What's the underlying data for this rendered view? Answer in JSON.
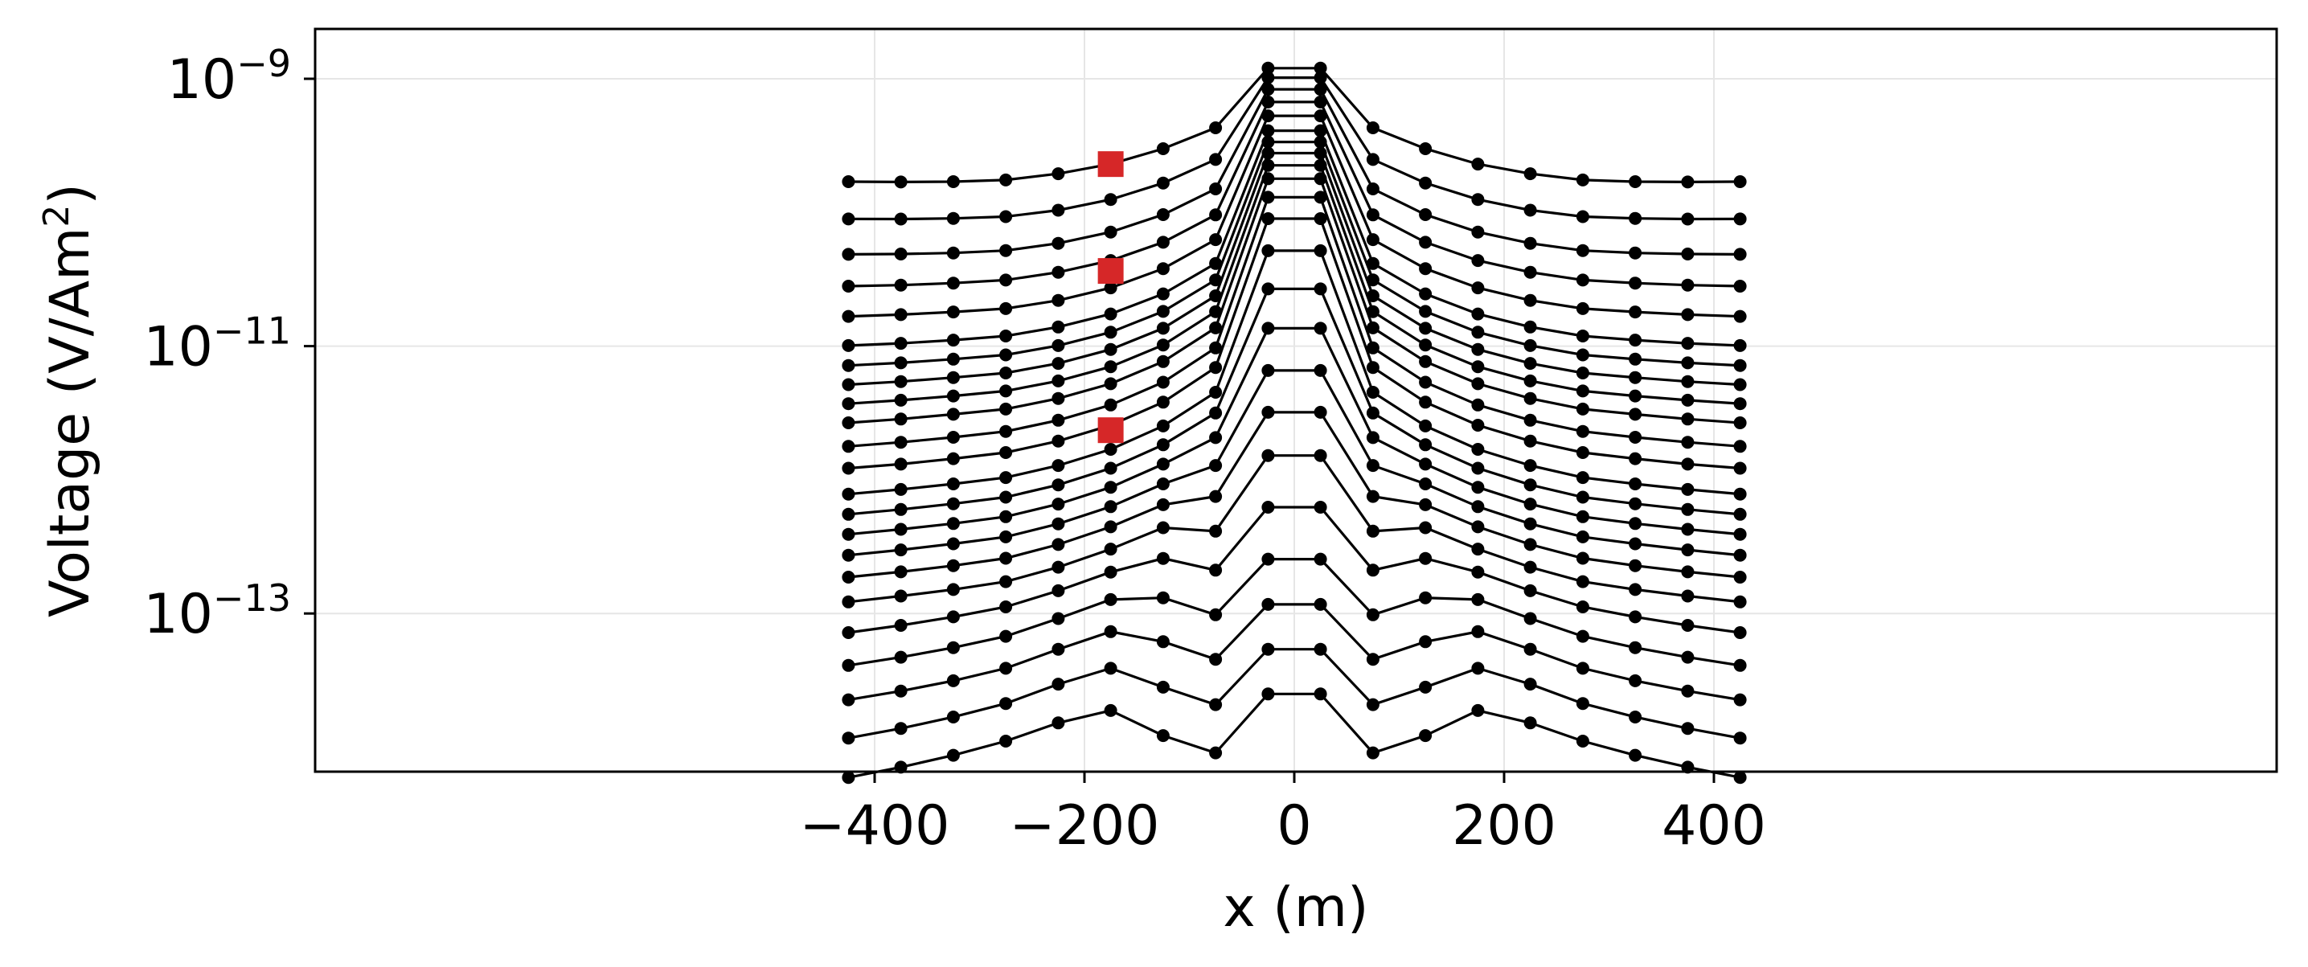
{
  "chart_data": {
    "type": "line",
    "xlabel": "x (m)",
    "ylabel": "Voltage (V/Am²)",
    "ylabel_parts": {
      "pre": "Voltage (V/Am",
      "sup": "2",
      "post": ")"
    },
    "xscale": "linear",
    "yscale": "log",
    "xlim": [
      -465,
      465
    ],
    "ylim": [
      4e-15,
      2.2e-09
    ],
    "x_ticks": [
      -400,
      -200,
      0,
      200,
      400
    ],
    "x_tick_labels": [
      "−400",
      "−200",
      "0",
      "200",
      "400"
    ],
    "y_ticks": [
      {
        "value": 1e-09,
        "base": "10",
        "exp": "−9"
      },
      {
        "value": 1e-11,
        "base": "10",
        "exp": "−11"
      },
      {
        "value": 1e-13,
        "base": "10",
        "exp": "−13"
      }
    ],
    "grid": true,
    "legend": "none",
    "line_color": "#000000",
    "highlight_color": "#d62728",
    "x": [
      -425,
      -375,
      -325,
      -275,
      -225,
      -175,
      -125,
      -75,
      -25,
      25,
      75,
      125,
      175,
      225,
      275,
      325,
      375,
      425
    ],
    "series": [
      {
        "values": [
          1.7e-10,
          1.69e-10,
          1.7e-10,
          1.75e-10,
          1.95e-10,
          2.3e-10,
          3e-10,
          4.3e-10,
          1.2e-09,
          1.2e-09,
          4.3e-10,
          3e-10,
          2.3e-10,
          1.95e-10,
          1.75e-10,
          1.7e-10,
          1.69e-10,
          1.7e-10
        ]
      },
      {
        "values": [
          8.94e-11,
          8.93e-11,
          9.02e-11,
          9.3e-11,
          1.04e-10,
          1.25e-10,
          1.66e-10,
          2.49e-10,
          1.02e-09,
          1.02e-09,
          2.49e-10,
          1.66e-10,
          1.25e-10,
          1.04e-10,
          9.3e-11,
          9.02e-11,
          8.93e-11,
          8.94e-11
        ]
      },
      {
        "values": [
          4.86e-11,
          4.89e-11,
          4.98e-11,
          5.19e-11,
          5.88e-11,
          7.13e-11,
          9.63e-11,
          1.5e-10,
          8.34e-10,
          8.34e-10,
          1.5e-10,
          9.63e-11,
          7.13e-11,
          5.88e-11,
          5.19e-11,
          4.98e-11,
          4.89e-11,
          4.86e-11
        ]
      },
      {
        "values": [
          2.81e-11,
          2.86e-11,
          2.96e-11,
          3.12e-11,
          3.57e-11,
          4.37e-11,
          5.98e-11,
          9.59e-11,
          6.7e-10,
          6.7e-10,
          9.59e-11,
          5.98e-11,
          4.37e-11,
          3.57e-11,
          3.12e-11,
          2.96e-11,
          2.86e-11,
          2.81e-11
        ]
      },
      {
        "values": [
          1.67e-11,
          1.72e-11,
          1.8e-11,
          1.91e-11,
          2.2e-11,
          2.73e-11,
          3.8e-11,
          6.26e-11,
          5.28e-10,
          5.28e-10,
          6.26e-11,
          3.8e-11,
          2.73e-11,
          2.2e-11,
          1.91e-11,
          1.8e-11,
          1.72e-11,
          1.67e-11
        ]
      },
      {
        "values": [
          1.01e-11,
          1.05e-11,
          1.11e-11,
          1.19e-11,
          1.39e-11,
          1.74e-11,
          2.46e-11,
          4.15e-11,
          4.09e-10,
          4.09e-10,
          4.15e-11,
          2.46e-11,
          1.74e-11,
          1.39e-11,
          1.19e-11,
          1.11e-11,
          1.05e-11,
          1.01e-11
        ]
      },
      {
        "values": [
          7.16e-12,
          7.5e-12,
          7.99e-12,
          8.6e-12,
          1.01e-11,
          1.27e-11,
          1.82e-11,
          3.13e-11,
          3.37e-10,
          3.37e-10,
          3.13e-11,
          1.82e-11,
          1.27e-11,
          1.01e-11,
          8.6e-12,
          7.99e-12,
          7.5e-12,
          7.16e-12
        ]
      },
      {
        "values": [
          5.15e-12,
          5.43e-12,
          5.82e-12,
          6.3e-12,
          7.43e-12,
          9.45e-12,
          1.36e-11,
          2.38e-11,
          2.78e-10,
          2.78e-10,
          2.38e-11,
          1.36e-11,
          9.45e-12,
          7.43e-12,
          6.3e-12,
          5.82e-12,
          5.43e-12,
          5.15e-12
        ]
      },
      {
        "values": [
          3.71e-12,
          3.94e-12,
          4.24e-12,
          4.62e-12,
          5.49e-12,
          7.02e-12,
          1.02e-11,
          1.81e-11,
          2.25e-10,
          2.25e-10,
          1.81e-11,
          1.02e-11,
          7.02e-12,
          5.49e-12,
          4.62e-12,
          4.24e-12,
          3.94e-12,
          3.71e-12
        ]
      },
      {
        "values": [
          2.67e-12,
          2.85e-12,
          3.09e-12,
          3.38e-12,
          4.06e-12,
          5.23e-12,
          7.67e-12,
          1.37e-11,
          1.79e-10,
          1.79e-10,
          1.37e-11,
          7.67e-12,
          5.23e-12,
          4.06e-12,
          3.38e-12,
          3.09e-12,
          2.85e-12,
          2.67e-12
        ]
      },
      {
        "values": [
          1.78e-12,
          1.91e-12,
          2.08e-12,
          2.3e-12,
          2.79e-12,
          3.63e-12,
          5.37e-12,
          9.7e-12,
          1.3e-10,
          1.3e-10,
          9.7e-12,
          5.37e-12,
          3.63e-12,
          2.79e-12,
          2.3e-12,
          2.08e-12,
          1.91e-12,
          1.78e-12
        ]
      },
      {
        "values": [
          1.22e-12,
          1.31e-12,
          1.44e-12,
          1.6e-12,
          1.95e-12,
          2.56e-12,
          3.81e-12,
          6.92e-12,
          8.99e-11,
          8.99e-11,
          6.92e-12,
          3.81e-12,
          2.56e-12,
          1.95e-12,
          1.6e-12,
          1.44e-12,
          1.31e-12,
          1.22e-12
        ]
      },
      {
        "values": [
          7.82e-13,
          8.47e-13,
          9.32e-13,
          1.04e-12,
          1.28e-12,
          1.69e-12,
          2.53e-12,
          4.52e-12,
          5.17e-11,
          5.17e-11,
          4.52e-12,
          2.53e-12,
          1.69e-12,
          1.28e-12,
          1.04e-12,
          9.32e-13,
          8.47e-13,
          7.82e-13
        ]
      },
      {
        "values": [
          5.52e-13,
          6e-13,
          6.62e-13,
          7.42e-13,
          9.16e-13,
          1.22e-12,
          1.83e-12,
          3.16e-12,
          2.68e-11,
          2.68e-11,
          3.16e-12,
          1.83e-12,
          1.22e-12,
          9.16e-13,
          7.42e-13,
          6.62e-13,
          6e-13,
          5.52e-13
        ]
      },
      {
        "values": [
          3.91e-13,
          4.26e-13,
          4.71e-13,
          5.3e-13,
          6.58e-13,
          8.79e-13,
          1.31e-12,
          2.07e-12,
          1.36e-11,
          1.36e-11,
          2.07e-12,
          1.31e-12,
          8.79e-13,
          6.58e-13,
          5.3e-13,
          4.71e-13,
          4.26e-13,
          3.91e-13
        ]
      },
      {
        "values": [
          2.73e-13,
          2.99e-13,
          3.32e-13,
          3.74e-13,
          4.68e-13,
          6.3e-13,
          9.32e-13,
          1.28e-12,
          6.57e-12,
          6.57e-12,
          1.28e-12,
          9.32e-13,
          6.3e-13,
          4.68e-13,
          3.74e-13,
          3.32e-13,
          2.99e-13,
          2.73e-13
        ]
      },
      {
        "values": [
          1.87e-13,
          2.05e-13,
          2.28e-13,
          2.59e-13,
          3.28e-13,
          4.45e-13,
          6.51e-13,
          7.51e-13,
          3.2e-12,
          3.2e-12,
          7.51e-13,
          6.51e-13,
          4.45e-13,
          3.28e-13,
          2.59e-13,
          2.28e-13,
          2.05e-13,
          1.87e-13
        ]
      },
      {
        "values": [
          1.22e-13,
          1.35e-13,
          1.51e-13,
          1.73e-13,
          2.22e-13,
          3.03e-13,
          4.38e-13,
          4.13e-13,
          1.52e-12,
          1.52e-12,
          4.13e-13,
          4.38e-13,
          3.03e-13,
          2.22e-13,
          1.73e-13,
          1.51e-13,
          1.35e-13,
          1.22e-13
        ]
      },
      {
        "values": [
          7.19e-14,
          8.15e-14,
          9.44e-14,
          1.12e-13,
          1.48e-13,
          2.04e-13,
          2.58e-13,
          2.11e-13,
          6.24e-13,
          6.24e-13,
          2.11e-13,
          2.58e-13,
          2.04e-13,
          1.48e-13,
          1.12e-13,
          9.44e-14,
          8.15e-14,
          7.19e-14
        ]
      },
      {
        "values": [
          4.09e-14,
          4.71e-14,
          5.55e-14,
          6.75e-14,
          9.17e-14,
          1.27e-13,
          1.31e-13,
          9.78e-14,
          2.55e-13,
          2.55e-13,
          9.78e-14,
          1.31e-13,
          1.27e-13,
          9.17e-14,
          6.75e-14,
          5.55e-14,
          4.71e-14,
          4.09e-14
        ]
      },
      {
        "values": [
          2.26e-14,
          2.63e-14,
          3.14e-14,
          3.89e-14,
          5.4e-14,
          7.31e-14,
          6.15e-14,
          4.54e-14,
          1.17e-13,
          1.17e-13,
          4.54e-14,
          6.15e-14,
          7.31e-14,
          5.4e-14,
          3.89e-14,
          3.14e-14,
          2.63e-14,
          2.26e-14
        ]
      },
      {
        "values": [
          1.17e-14,
          1.38e-14,
          1.68e-14,
          2.12e-14,
          2.96e-14,
          3.89e-14,
          2.81e-14,
          2.08e-14,
          5.4e-14,
          5.4e-14,
          2.08e-14,
          2.81e-14,
          3.89e-14,
          2.96e-14,
          2.12e-14,
          1.68e-14,
          1.38e-14,
          1.17e-14
        ]
      },
      {
        "values": [
          5.93e-15,
          7.08e-15,
          8.7e-15,
          1.11e-14,
          1.52e-14,
          1.88e-14,
          1.22e-14,
          9.06e-15,
          2.5e-14,
          2.5e-14,
          9.06e-15,
          1.22e-14,
          1.88e-14,
          1.52e-14,
          1.11e-14,
          8.7e-15,
          7.08e-15,
          5.93e-15
        ]
      }
    ],
    "highlighted_points": [
      {
        "x": -175,
        "y": 2.3e-10
      },
      {
        "x": -175,
        "y": 3.65e-11
      },
      {
        "x": -175,
        "y": 2.35e-12
      }
    ]
  }
}
